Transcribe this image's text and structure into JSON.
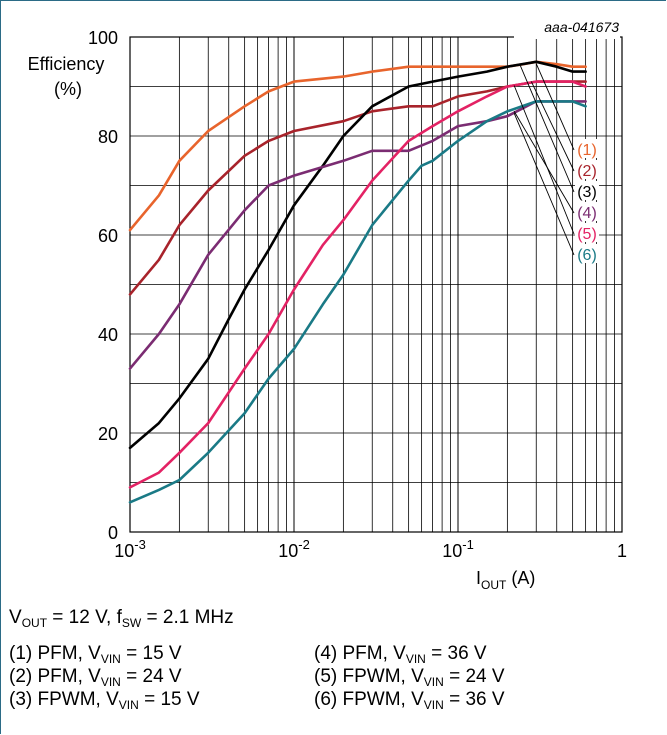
{
  "chart_data": {
    "type": "line",
    "code": "aaa-041673",
    "ylabel_line1": "Efficiency",
    "ylabel_line2": "(%)",
    "xlabel_main": "I",
    "xlabel_sub": "OUT",
    "xlabel_unit": " (A)",
    "x_scale": "log",
    "xlim": [
      0.001,
      1
    ],
    "ylim": [
      0,
      100
    ],
    "y_ticks": [
      0,
      20,
      40,
      60,
      80,
      100
    ],
    "x_ticks": [
      {
        "value": 0.001,
        "base": "10",
        "exp": "-3"
      },
      {
        "value": 0.01,
        "base": "10",
        "exp": "-2"
      },
      {
        "value": 0.1,
        "base": "10",
        "exp": "-1"
      },
      {
        "value": 1,
        "base": "1",
        "exp": ""
      }
    ],
    "grid": true,
    "series": [
      {
        "label": "(1)",
        "color": "#e8642c",
        "x": [
          0.001,
          0.0015,
          0.002,
          0.003,
          0.005,
          0.007,
          0.01,
          0.02,
          0.03,
          0.05,
          0.07,
          0.1,
          0.15,
          0.2,
          0.25,
          0.3,
          0.4,
          0.5,
          0.6
        ],
        "y": [
          61,
          68,
          75,
          81,
          86,
          89,
          91,
          92,
          93,
          94,
          94,
          94,
          94,
          94,
          94.5,
          95,
          94.5,
          94,
          94
        ]
      },
      {
        "label": "(2)",
        "color": "#a8232b",
        "x": [
          0.001,
          0.0015,
          0.002,
          0.003,
          0.005,
          0.007,
          0.01,
          0.02,
          0.03,
          0.05,
          0.07,
          0.1,
          0.15,
          0.2,
          0.3,
          0.4,
          0.5,
          0.6
        ],
        "y": [
          48,
          55,
          62,
          69,
          76,
          79,
          81,
          83,
          85,
          86,
          86,
          88,
          89,
          90,
          91,
          91,
          91,
          91
        ]
      },
      {
        "label": "(3)",
        "color": "#000000",
        "x": [
          0.001,
          0.0015,
          0.002,
          0.003,
          0.004,
          0.005,
          0.007,
          0.01,
          0.015,
          0.02,
          0.03,
          0.05,
          0.07,
          0.1,
          0.15,
          0.2,
          0.3,
          0.4,
          0.5,
          0.6
        ],
        "y": [
          17,
          22,
          27,
          35,
          43,
          49,
          57,
          66,
          74,
          80,
          86,
          90,
          91,
          92,
          93,
          94,
          95,
          94,
          93,
          93
        ]
      },
      {
        "label": "(4)",
        "color": "#7b2c72",
        "x": [
          0.001,
          0.0015,
          0.002,
          0.003,
          0.005,
          0.007,
          0.01,
          0.02,
          0.03,
          0.05,
          0.07,
          0.1,
          0.15,
          0.2,
          0.3,
          0.4,
          0.5,
          0.6
        ],
        "y": [
          33,
          40,
          46,
          56,
          65,
          70,
          72,
          75,
          77,
          77,
          79,
          82,
          83,
          84,
          87,
          87,
          87,
          87
        ]
      },
      {
        "label": "(5)",
        "color": "#e32264",
        "x": [
          0.001,
          0.0015,
          0.002,
          0.003,
          0.005,
          0.007,
          0.01,
          0.015,
          0.02,
          0.03,
          0.05,
          0.07,
          0.1,
          0.15,
          0.2,
          0.3,
          0.4,
          0.5,
          0.6
        ],
        "y": [
          9,
          12,
          16,
          22,
          33,
          40,
          49,
          58,
          63,
          71,
          79,
          82,
          85,
          88,
          90,
          91,
          91,
          91,
          90
        ]
      },
      {
        "label": "(6)",
        "color": "#1a7a86",
        "x": [
          0.001,
          0.0015,
          0.002,
          0.003,
          0.005,
          0.007,
          0.01,
          0.015,
          0.02,
          0.03,
          0.05,
          0.06,
          0.07,
          0.1,
          0.15,
          0.2,
          0.3,
          0.4,
          0.5,
          0.6
        ],
        "y": [
          6,
          8.5,
          10.5,
          16,
          24,
          31,
          37,
          46,
          52,
          62,
          71,
          74,
          75,
          79,
          83,
          85,
          87,
          87,
          87,
          86
        ]
      }
    ]
  },
  "notes": {
    "cond_v": "V",
    "cond_v_sub": "OUT",
    "cond_mid": " = 12 V, f",
    "cond_f_sub": "SW",
    "cond_tail": " = 2.1 MHz",
    "legend": [
      {
        "pre": "(1) PFM, V",
        "sub": "VIN",
        "post": " = 15 V"
      },
      {
        "pre": "(4) PFM, V",
        "sub": "VIN",
        "post": " = 36 V"
      },
      {
        "pre": "(2) PFM, V",
        "sub": "VIN",
        "post": " = 24 V"
      },
      {
        "pre": "(5) FPWM, V",
        "sub": "VIN",
        "post": " = 24 V"
      },
      {
        "pre": "(3) FPWM, V",
        "sub": "VIN",
        "post": " = 15 V"
      },
      {
        "pre": "(6) FPWM, V",
        "sub": "VIN",
        "post": " = 36 V"
      }
    ]
  }
}
